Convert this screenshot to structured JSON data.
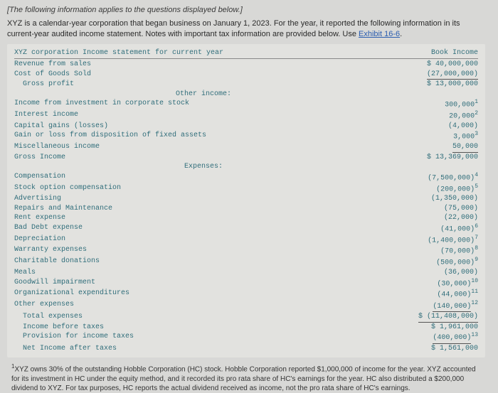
{
  "intro_text": "[The following information applies to the questions displayed below.]",
  "description_pre": "XYZ is a calendar-year corporation that began business on January 1, 2023. For the year, it reported the following information in its current-year audited income statement. Notes with important tax information are provided below. Use ",
  "exhibit_link": "Exhibit 16-6",
  "description_post": ".",
  "statement": {
    "title": "XYZ corporation Income statement for current year",
    "col_header": "Book Income",
    "rows_top": [
      {
        "label": "Revenue from sales",
        "value": "$ 40,000,000"
      },
      {
        "label": "Cost of Goods Sold",
        "value": "(27,000,000)",
        "underline": true
      },
      {
        "label": "  Gross profit",
        "value": "$ 13,000,000"
      }
    ],
    "other_income_hdr": "Other income:",
    "rows_other": [
      {
        "label": "Income from investment in corporate stock",
        "value": "300,000",
        "sup": "1"
      },
      {
        "label": "Interest income",
        "value": "20,000",
        "sup": "2"
      },
      {
        "label": "Capital gains (losses)",
        "value": "(4,000)"
      },
      {
        "label": "Gain or loss from disposition of fixed assets",
        "value": "3,000",
        "sup": "3"
      },
      {
        "label": "Miscellaneous income",
        "value": "50,000",
        "underline": true
      },
      {
        "label": "Gross Income",
        "value": "$ 13,369,000"
      }
    ],
    "expenses_hdr": "Expenses:",
    "rows_exp": [
      {
        "label": "Compensation",
        "value": "(7,500,000)",
        "sup": "4"
      },
      {
        "label": "Stock option compensation",
        "value": "(200,000)",
        "sup": "5"
      },
      {
        "label": "Advertising",
        "value": "(1,350,000)"
      },
      {
        "label": "Repairs and Maintenance",
        "value": "(75,000)"
      },
      {
        "label": "Rent expense",
        "value": "(22,000)"
      },
      {
        "label": "Bad Debt expense",
        "value": "(41,000)",
        "sup": "6"
      },
      {
        "label": "Depreciation",
        "value": "(1,400,000)",
        "sup": "7"
      },
      {
        "label": "Warranty expenses",
        "value": "(70,000)",
        "sup": "8"
      },
      {
        "label": "Charitable donations",
        "value": "(500,000)",
        "sup": "9"
      },
      {
        "label": "Meals",
        "value": "(36,000)"
      },
      {
        "label": "Goodwill impairment",
        "value": "(30,000)",
        "sup": "10"
      },
      {
        "label": "Organizational expenditures",
        "value": "(44,000)",
        "sup": "11"
      },
      {
        "label": "Other expenses",
        "value": "(140,000)",
        "sup": "12",
        "underline": true
      },
      {
        "label": "  Total expenses",
        "value": "$ (11,408,000)",
        "underline": true
      },
      {
        "label": "  Income before taxes",
        "value": "$ 1,961,000"
      },
      {
        "label": "  Provision for income taxes",
        "value": "(400,000)",
        "sup": "13",
        "underline": true
      },
      {
        "label": "  Net Income after taxes",
        "value": "$ 1,561,000"
      }
    ]
  },
  "footnote_sup": "1",
  "footnote_text": "XYZ owns 30% of the outstanding Hobble Corporation (HC) stock. Hobble Corporation reported $1,000,000 of income for the year. XYZ accounted for its investment in HC under the equity method, and it recorded its pro rata share of HC's earnings for the year. HC also distributed a $200,000 dividend to XYZ. For tax purposes, HC reports the actual dividend received as income, not the pro rata share of HC's earnings."
}
